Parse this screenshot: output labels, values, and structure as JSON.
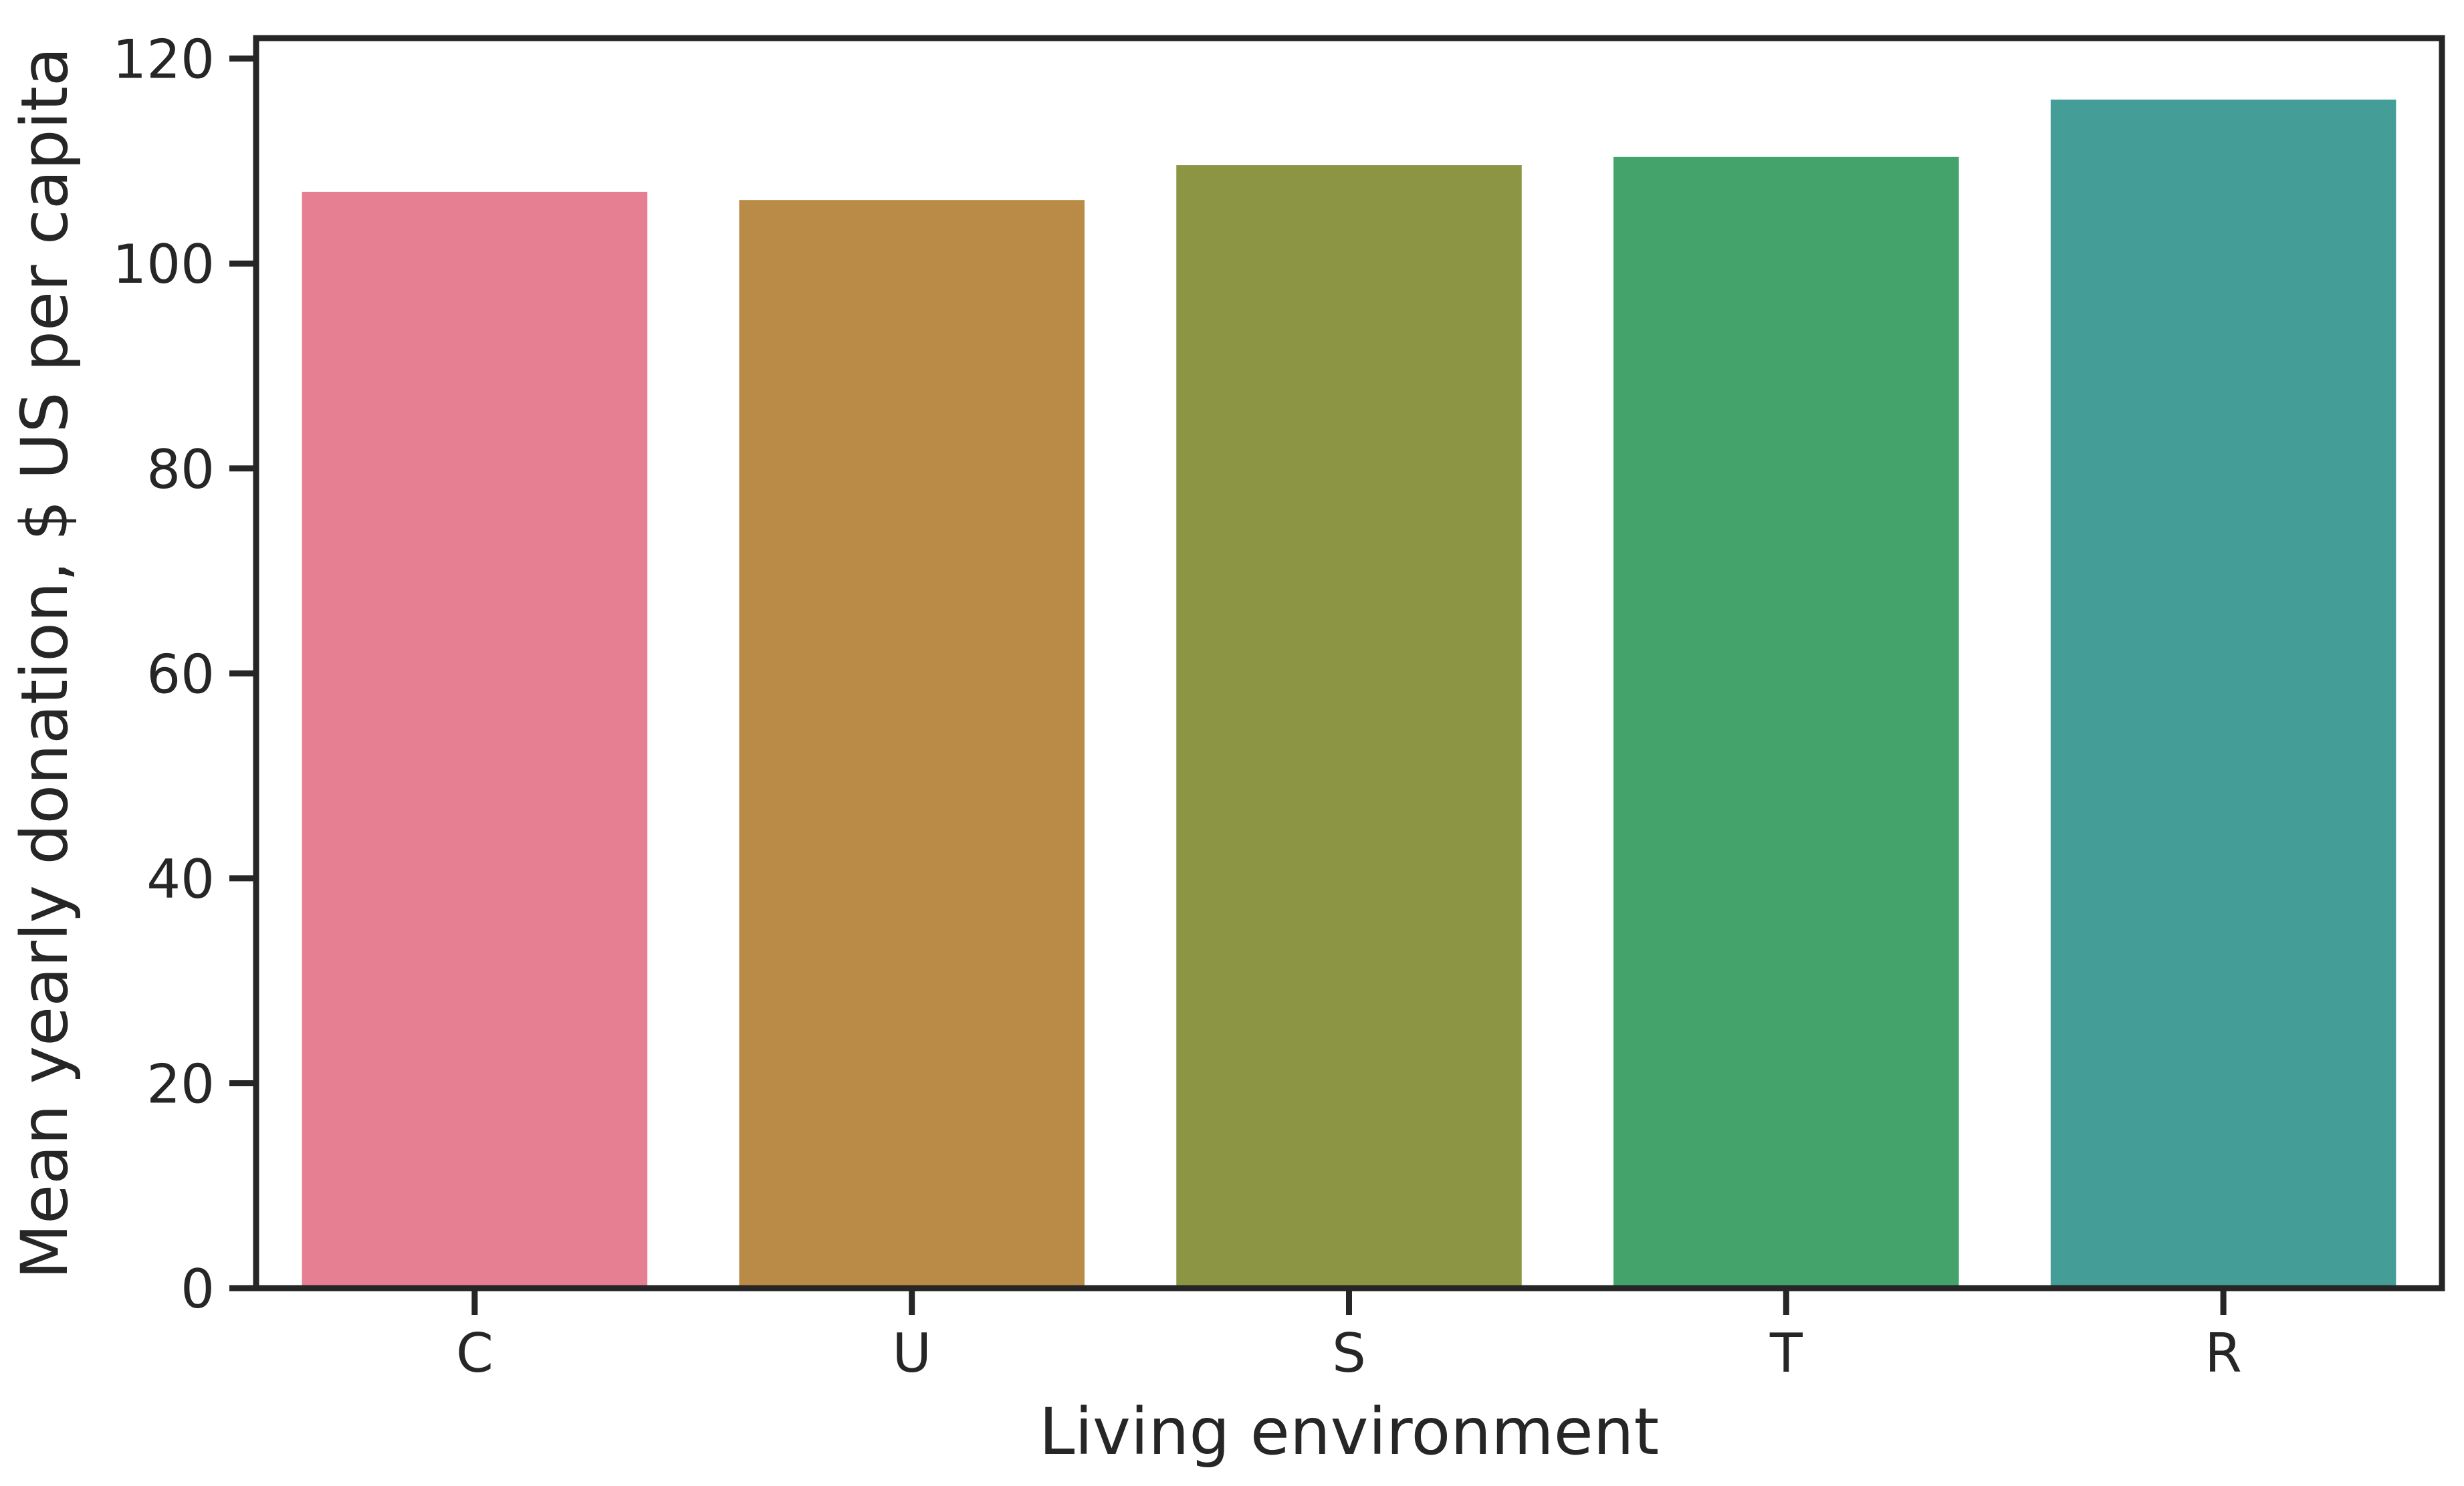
{
  "chart_data": {
    "type": "bar",
    "categories": [
      "C",
      "U",
      "S",
      "T",
      "R"
    ],
    "values": [
      107.0,
      106.2,
      109.6,
      110.4,
      116.0
    ],
    "colors": [
      "#e67f91",
      "#b98b46",
      "#8c9543",
      "#43a36b",
      "#449d96"
    ],
    "xlabel": "Living environment",
    "ylabel": "Mean yearly donation, $ US per capita",
    "ylim": [
      0,
      122
    ],
    "yticks": [
      0,
      20,
      40,
      60,
      80,
      100,
      120
    ],
    "grid": false,
    "legend": "none"
  }
}
